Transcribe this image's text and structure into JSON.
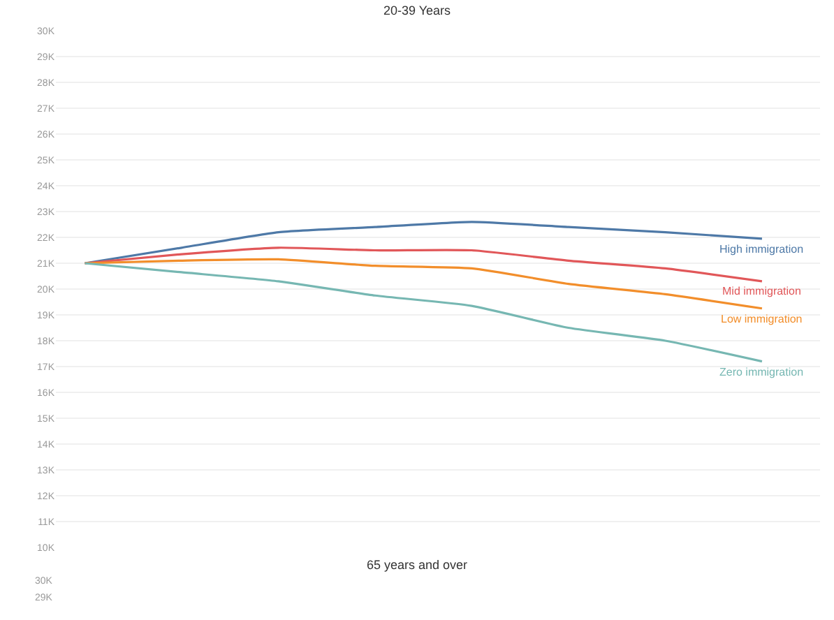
{
  "chart_data": [
    {
      "type": "line",
      "title": "20-39 Years",
      "categories": [
        null,
        null,
        null,
        null,
        null,
        null,
        null,
        null
      ],
      "series": [
        {
          "name": "High immigration",
          "color": "#4e79a7",
          "values": [
            21000,
            21600,
            22200,
            22400,
            22600,
            22400,
            22200,
            21950
          ]
        },
        {
          "name": "Mid immigration",
          "color": "#e15759",
          "values": [
            21000,
            21350,
            21600,
            21500,
            21500,
            21100,
            20800,
            20300
          ]
        },
        {
          "name": "Low immigration",
          "color": "#f28e2b",
          "values": [
            21000,
            21100,
            21150,
            20900,
            20800,
            20200,
            19800,
            19250
          ]
        },
        {
          "name": "Zero immigration",
          "color": "#76b7b2",
          "values": [
            21000,
            20650,
            20300,
            19750,
            19350,
            18500,
            18000,
            17200
          ]
        }
      ],
      "ylim": [
        10000,
        30000
      ],
      "yticks": [
        {
          "value": 10000,
          "label": "10K"
        },
        {
          "value": 11000,
          "label": "11K"
        },
        {
          "value": 12000,
          "label": "12K"
        },
        {
          "value": 13000,
          "label": "13K"
        },
        {
          "value": 14000,
          "label": "14K"
        },
        {
          "value": 15000,
          "label": "15K"
        },
        {
          "value": 16000,
          "label": "16K"
        },
        {
          "value": 17000,
          "label": "17K"
        },
        {
          "value": 18000,
          "label": "18K"
        },
        {
          "value": 19000,
          "label": "19K"
        },
        {
          "value": 20000,
          "label": "20K"
        },
        {
          "value": 21000,
          "label": "21K"
        },
        {
          "value": 22000,
          "label": "22K"
        },
        {
          "value": 23000,
          "label": "23K"
        },
        {
          "value": 24000,
          "label": "24K"
        },
        {
          "value": 25000,
          "label": "25K"
        },
        {
          "value": 26000,
          "label": "26K"
        },
        {
          "value": 27000,
          "label": "27K"
        },
        {
          "value": 28000,
          "label": "28K"
        },
        {
          "value": 29000,
          "label": "29K"
        },
        {
          "value": 30000,
          "label": "30K"
        }
      ],
      "grid": "y",
      "legend": false,
      "tick_labels": "y",
      "marker": "none",
      "line_style": "solid"
    },
    {
      "type": "other",
      "title": "65 years and over",
      "annotations": [
        "30K",
        "29K"
      ]
    }
  ]
}
